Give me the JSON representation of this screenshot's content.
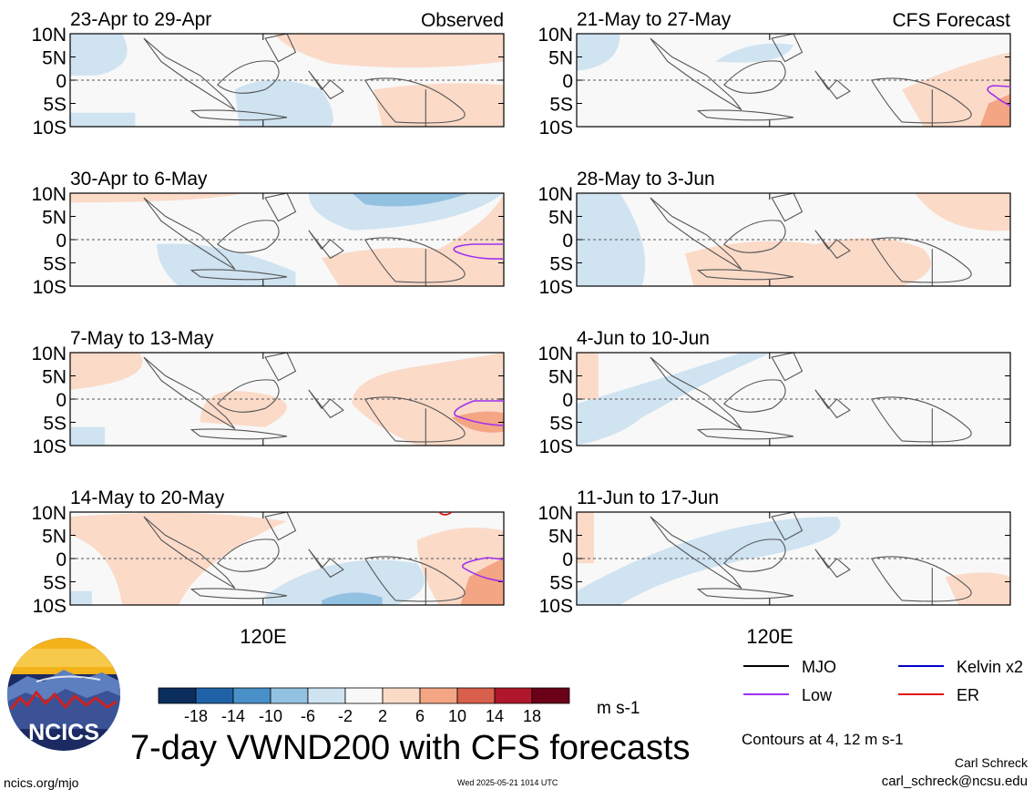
{
  "title": "7-day VWND200 with CFS forecasts",
  "units": "m s-1",
  "observed_label": "Observed",
  "forecast_label": "CFS Forecast",
  "x_tick_label": "120E",
  "contours_note": "Contours at 4, 12 m s-1",
  "author": "Carl Schreck",
  "email": "carl_schreck@ncsu.edu",
  "site": "ncics.org/mjo",
  "timestamp": "Wed 2025-05-21 1014 UTC",
  "logo_text": "NCICS",
  "colors": {
    "neg18": "#0b2e5c",
    "neg14": "#1f62a8",
    "neg10": "#4a90c8",
    "neg6": "#93c1e2",
    "neg2": "#cfe3f1",
    "zero": "#f8f8f8",
    "pos2": "#fbdac8",
    "pos6": "#f3a584",
    "pos10": "#d9604d",
    "pos14": "#b0172c",
    "pos18": "#6b0019"
  },
  "colorbar": {
    "boundaries": [
      "-18",
      "-14",
      "-10",
      "-6",
      "-2",
      "2",
      "6",
      "10",
      "14",
      "18"
    ]
  },
  "legend": [
    {
      "label": "MJO",
      "color": "#000000"
    },
    {
      "label": "Kelvin x2",
      "color": "#0000cc"
    },
    {
      "label": "Low",
      "color": "#a030f0"
    },
    {
      "label": "ER",
      "color": "#dd1111"
    }
  ],
  "chart_data": {
    "type": "heatmap",
    "variable": "VWND200",
    "y_ticks": [
      "10N",
      "5N",
      "0",
      "5S",
      "10S"
    ],
    "x_ticks": [
      "120E"
    ],
    "ylim": [
      -10,
      10
    ],
    "panels": [
      {
        "period": "23-Apr to 29-Apr",
        "kind": "Observed",
        "corner_label": "Observed"
      },
      {
        "period": "30-Apr to 6-May",
        "kind": "Observed",
        "corner_label": ""
      },
      {
        "period": "7-May to 13-May",
        "kind": "Observed",
        "corner_label": ""
      },
      {
        "period": "14-May to 20-May",
        "kind": "Observed",
        "corner_label": ""
      },
      {
        "period": "21-May to 27-May",
        "kind": "CFS Forecast",
        "corner_label": "CFS Forecast"
      },
      {
        "period": "28-May to 3-Jun",
        "kind": "CFS Forecast",
        "corner_label": ""
      },
      {
        "period": "4-Jun to 10-Jun",
        "kind": "CFS Forecast",
        "corner_label": ""
      },
      {
        "period": "11-Jun to 17-Jun",
        "kind": "CFS Forecast",
        "corner_label": ""
      }
    ]
  }
}
